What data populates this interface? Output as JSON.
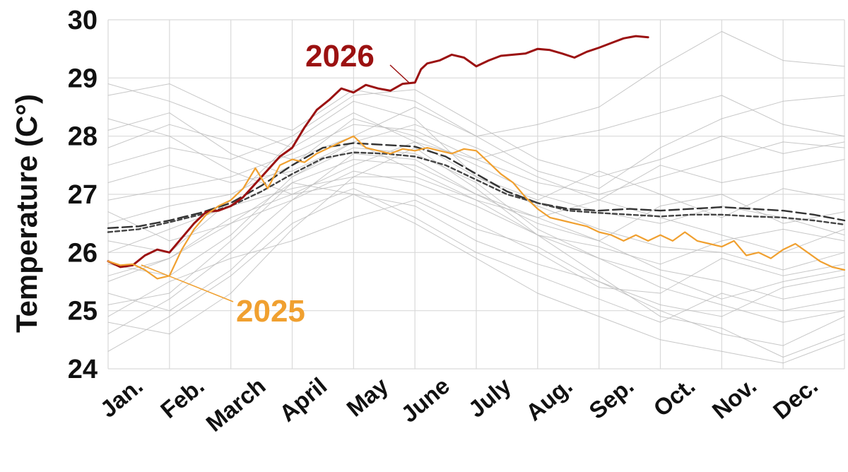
{
  "chart_data": {
    "type": "line",
    "title": "",
    "xlabel": "",
    "ylabel": "Temperature (C°)",
    "ylim": [
      24,
      30
    ],
    "xlim": [
      0,
      12
    ],
    "yticks": [
      24,
      25,
      26,
      27,
      28,
      29,
      30
    ],
    "categories": [
      "Jan.",
      "Feb.",
      "March",
      "April",
      "May",
      "June",
      "July",
      "Aug.",
      "Sep.",
      "Oct.",
      "Nov.",
      "Dec."
    ],
    "grid": true,
    "colors": {
      "y2026": "#9b1111",
      "y2025": "#f0a030",
      "mean": "#333333",
      "background_years": "#bdbdbd",
      "grid": "#d9d9d9"
    },
    "annotations": [
      {
        "text": "2026",
        "series": "2026"
      },
      {
        "text": "2025",
        "series": "2025"
      }
    ],
    "series": [
      {
        "name": "2026",
        "color": "#9b1111",
        "x": [
          0,
          0.2,
          0.4,
          0.6,
          0.8,
          1.0,
          1.2,
          1.4,
          1.6,
          1.8,
          2.0,
          2.2,
          2.5,
          2.8,
          3.0,
          3.2,
          3.4,
          3.6,
          3.8,
          4.0,
          4.2,
          4.4,
          4.6,
          4.8,
          5.0,
          5.1,
          5.2,
          5.4,
          5.6,
          5.8,
          6.0,
          6.2,
          6.4,
          6.6,
          6.8,
          7.0,
          7.2,
          7.4,
          7.6,
          7.8,
          8.0,
          8.2,
          8.4,
          8.6,
          8.8
        ],
        "y": [
          25.85,
          25.75,
          25.78,
          25.95,
          26.05,
          26.0,
          26.25,
          26.5,
          26.7,
          26.72,
          26.8,
          26.95,
          27.3,
          27.65,
          27.8,
          28.15,
          28.45,
          28.62,
          28.82,
          28.75,
          28.88,
          28.82,
          28.78,
          28.9,
          28.92,
          29.15,
          29.25,
          29.3,
          29.4,
          29.35,
          29.2,
          29.3,
          29.38,
          29.4,
          29.42,
          29.5,
          29.48,
          29.42,
          29.35,
          29.45,
          29.52,
          29.6,
          29.68,
          29.72,
          29.7
        ]
      },
      {
        "name": "2025",
        "color": "#f0a030",
        "x": [
          0,
          0.2,
          0.4,
          0.6,
          0.8,
          1.0,
          1.2,
          1.4,
          1.6,
          1.8,
          2.0,
          2.2,
          2.4,
          2.6,
          2.8,
          3.0,
          3.2,
          3.4,
          3.6,
          3.8,
          4.0,
          4.2,
          4.4,
          4.6,
          4.8,
          5.0,
          5.2,
          5.4,
          5.6,
          5.8,
          6.0,
          6.2,
          6.4,
          6.6,
          6.8,
          7.0,
          7.2,
          7.4,
          7.6,
          7.8,
          8.0,
          8.2,
          8.4,
          8.6,
          8.8,
          9.0,
          9.2,
          9.4,
          9.6,
          9.8,
          10.0,
          10.2,
          10.4,
          10.6,
          10.8,
          11.0,
          11.2,
          11.4,
          11.6,
          11.8,
          12.0
        ],
        "y": [
          25.85,
          25.78,
          25.8,
          25.7,
          25.55,
          25.6,
          26.05,
          26.4,
          26.65,
          26.8,
          26.9,
          27.1,
          27.45,
          27.1,
          27.5,
          27.6,
          27.55,
          27.7,
          27.8,
          27.9,
          28.0,
          27.8,
          27.75,
          27.7,
          27.78,
          27.75,
          27.8,
          27.75,
          27.7,
          27.78,
          27.75,
          27.55,
          27.35,
          27.2,
          26.95,
          26.75,
          26.6,
          26.55,
          26.5,
          26.45,
          26.35,
          26.3,
          26.2,
          26.3,
          26.2,
          26.3,
          26.2,
          26.35,
          26.2,
          26.15,
          26.1,
          26.2,
          25.95,
          26.0,
          25.9,
          26.05,
          26.15,
          26.0,
          25.85,
          25.75,
          25.7
        ]
      },
      {
        "name": "",
        "color": "#333333",
        "dash": "long",
        "x": [
          0,
          0.5,
          1.0,
          1.5,
          2.0,
          2.5,
          3.0,
          3.5,
          4.0,
          4.5,
          5.0,
          5.5,
          6.0,
          6.5,
          7.0,
          7.5,
          8.0,
          8.5,
          9.0,
          9.5,
          10.0,
          10.5,
          11.0,
          11.5,
          12.0
        ],
        "y": [
          26.42,
          26.45,
          26.55,
          26.68,
          26.85,
          27.15,
          27.5,
          27.8,
          27.88,
          27.85,
          27.82,
          27.65,
          27.35,
          27.05,
          26.85,
          26.75,
          26.72,
          26.75,
          26.72,
          26.75,
          26.78,
          26.75,
          26.72,
          26.65,
          26.55
        ]
      },
      {
        "name": "",
        "color": "#444444",
        "dash": "short",
        "x": [
          0,
          0.5,
          1.0,
          1.5,
          2.0,
          2.5,
          3.0,
          3.5,
          4.0,
          4.5,
          5.0,
          5.5,
          6.0,
          6.5,
          7.0,
          7.5,
          8.0,
          8.5,
          9.0,
          9.5,
          10.0,
          10.5,
          11.0,
          11.5,
          12.0
        ],
        "y": [
          26.35,
          26.4,
          26.52,
          26.65,
          26.8,
          27.05,
          27.35,
          27.62,
          27.72,
          27.7,
          27.65,
          27.5,
          27.25,
          27.0,
          26.85,
          26.72,
          26.68,
          26.65,
          26.62,
          26.65,
          26.65,
          26.62,
          26.6,
          26.55,
          26.48
        ]
      },
      {
        "name": "",
        "color": "#bdbdbd",
        "x": [
          0,
          1,
          2,
          3,
          4,
          5,
          6,
          7,
          8,
          9,
          10,
          11,
          12
        ],
        "y": [
          24.3,
          24.9,
          25.6,
          26.5,
          27.0,
          26.8,
          26.2,
          25.8,
          25.5,
          25.0,
          24.6,
          24.4,
          24.9
        ]
      },
      {
        "name": "",
        "color": "#bdbdbd",
        "x": [
          0,
          1,
          2,
          3,
          4,
          5,
          6,
          7,
          8,
          9,
          10,
          11,
          12
        ],
        "y": [
          28.7,
          28.9,
          28.4,
          28.1,
          28.8,
          28.6,
          28.0,
          28.2,
          28.5,
          29.2,
          29.8,
          29.3,
          29.2
        ]
      },
      {
        "name": "",
        "color": "#bdbdbd",
        "x": [
          0,
          1,
          2,
          3,
          4,
          5,
          6,
          7,
          8,
          9,
          10,
          11,
          12
        ],
        "y": [
          25.1,
          25.3,
          26.2,
          27.2,
          27.6,
          27.5,
          27.0,
          26.6,
          26.2,
          25.7,
          25.5,
          25.2,
          25.4
        ]
      },
      {
        "name": "",
        "color": "#bdbdbd",
        "x": [
          0,
          1,
          2,
          3,
          4,
          5,
          6,
          7,
          8,
          9,
          10,
          11,
          12
        ],
        "y": [
          26.9,
          27.1,
          27.3,
          27.7,
          28.2,
          28.1,
          27.6,
          27.2,
          27.0,
          27.3,
          27.6,
          27.9,
          27.8
        ]
      },
      {
        "name": "",
        "color": "#bdbdbd",
        "x": [
          0,
          1,
          2,
          3,
          4,
          5,
          6,
          7,
          8,
          9,
          10,
          11,
          12
        ],
        "y": [
          24.8,
          24.6,
          25.3,
          26.4,
          27.3,
          27.8,
          27.1,
          26.3,
          25.6,
          24.9,
          24.7,
          24.2,
          24.6
        ]
      },
      {
        "name": "",
        "color": "#bdbdbd",
        "x": [
          0,
          1,
          2,
          3,
          4,
          5,
          6,
          7,
          8,
          9,
          10,
          11,
          12
        ],
        "y": [
          27.8,
          28.2,
          27.9,
          27.6,
          28.0,
          28.5,
          28.0,
          27.4,
          27.1,
          27.8,
          28.3,
          28.6,
          28.7
        ]
      },
      {
        "name": "",
        "color": "#bdbdbd",
        "x": [
          0,
          1,
          2,
          3,
          4,
          5,
          6,
          7,
          8,
          9,
          10,
          11,
          12
        ],
        "y": [
          25.5,
          25.9,
          26.6,
          27.0,
          27.2,
          27.0,
          26.5,
          26.0,
          25.4,
          25.3,
          25.9,
          25.6,
          25.8
        ]
      },
      {
        "name": "",
        "color": "#bdbdbd",
        "x": [
          0,
          1,
          2,
          3,
          4,
          5,
          6,
          7,
          8,
          9,
          10,
          11,
          12
        ],
        "y": [
          26.2,
          26.0,
          26.9,
          27.9,
          28.6,
          28.3,
          27.3,
          26.8,
          26.4,
          26.1,
          26.0,
          25.7,
          26.0
        ]
      },
      {
        "name": "",
        "color": "#bdbdbd",
        "x": [
          0,
          1,
          2,
          3,
          4,
          5,
          6,
          7,
          8,
          9,
          10,
          11,
          12
        ],
        "y": [
          28.3,
          28.0,
          27.4,
          27.0,
          27.5,
          27.9,
          27.6,
          27.9,
          28.1,
          28.4,
          28.7,
          28.2,
          28.0
        ]
      },
      {
        "name": "",
        "color": "#bdbdbd",
        "x": [
          0,
          1,
          2,
          3,
          4,
          5,
          6,
          7,
          8,
          9,
          10,
          11,
          12
        ],
        "y": [
          24.6,
          25.2,
          26.0,
          26.9,
          27.4,
          27.2,
          26.8,
          26.3,
          25.9,
          25.4,
          25.1,
          24.8,
          25.0
        ]
      },
      {
        "name": "",
        "color": "#bdbdbd",
        "x": [
          0,
          1,
          2,
          3,
          4,
          5,
          6,
          7,
          8,
          9,
          10,
          11,
          12
        ],
        "y": [
          27.2,
          27.5,
          27.2,
          27.4,
          27.9,
          27.4,
          26.9,
          26.6,
          26.9,
          27.5,
          27.2,
          27.4,
          27.6
        ]
      },
      {
        "name": "",
        "color": "#bdbdbd",
        "x": [
          0,
          1,
          2,
          3,
          4,
          5,
          6,
          7,
          8,
          9,
          10,
          11,
          12
        ],
        "y": [
          25.8,
          25.6,
          26.3,
          27.3,
          27.8,
          27.7,
          27.2,
          26.4,
          25.9,
          25.6,
          25.2,
          25.5,
          25.7
        ]
      },
      {
        "name": "",
        "color": "#bdbdbd",
        "x": [
          0,
          1,
          2,
          3,
          4,
          5,
          6,
          7,
          8,
          9,
          10,
          11,
          12
        ],
        "y": [
          26.5,
          26.8,
          27.0,
          27.5,
          28.3,
          28.0,
          27.5,
          27.0,
          26.7,
          26.5,
          26.8,
          26.6,
          26.3
        ]
      },
      {
        "name": "",
        "color": "#bdbdbd",
        "x": [
          0,
          1,
          2,
          3,
          4,
          5,
          6,
          7,
          8,
          9,
          10,
          11,
          12
        ],
        "y": [
          28.9,
          28.6,
          28.2,
          27.8,
          28.4,
          27.9,
          27.3,
          26.9,
          27.4,
          27.0,
          26.6,
          27.1,
          26.9
        ]
      },
      {
        "name": "",
        "color": "#bdbdbd",
        "x": [
          0,
          1,
          2,
          3,
          4,
          5,
          6,
          7,
          8,
          9,
          10,
          11,
          12
        ],
        "y": [
          25.3,
          25.0,
          25.7,
          26.7,
          27.1,
          26.6,
          26.0,
          25.6,
          25.2,
          24.8,
          25.3,
          25.0,
          25.2
        ]
      },
      {
        "name": "",
        "color": "#bdbdbd",
        "x": [
          0,
          1,
          2,
          3,
          4,
          5,
          6,
          7,
          8,
          9,
          10,
          11,
          12
        ],
        "y": [
          27.5,
          27.8,
          27.6,
          28.0,
          28.7,
          28.8,
          28.2,
          27.6,
          27.3,
          27.6,
          28.0,
          27.7,
          27.9
        ]
      },
      {
        "name": "",
        "color": "#bdbdbd",
        "x": [
          0,
          1,
          2,
          3,
          4,
          5,
          6,
          7,
          8,
          9,
          10,
          11,
          12
        ],
        "y": [
          26.0,
          26.4,
          26.8,
          27.1,
          27.3,
          27.3,
          26.9,
          26.3,
          26.1,
          25.8,
          26.2,
          26.4,
          26.2
        ]
      },
      {
        "name": "",
        "color": "#bdbdbd",
        "x": [
          0,
          1,
          2,
          3,
          4,
          5,
          6,
          7,
          8,
          9,
          10,
          11,
          12
        ],
        "y": [
          24.9,
          25.5,
          25.9,
          26.2,
          26.6,
          26.9,
          26.4,
          26.1,
          25.5,
          25.1,
          24.9,
          25.4,
          25.6
        ]
      },
      {
        "name": "",
        "color": "#bdbdbd",
        "x": [
          0,
          1,
          2,
          3,
          4,
          5,
          6,
          7,
          8,
          9,
          10,
          11,
          12
        ],
        "y": [
          26.7,
          26.2,
          26.5,
          26.9,
          27.7,
          27.6,
          27.0,
          26.5,
          26.2,
          26.8,
          27.0,
          26.5,
          26.7
        ]
      },
      {
        "name": "",
        "color": "#bdbdbd",
        "x": [
          0,
          1,
          2,
          3,
          4,
          5,
          6,
          7,
          8,
          9,
          10,
          11,
          12
        ],
        "y": [
          28.1,
          28.4,
          27.7,
          27.3,
          27.9,
          28.2,
          27.8,
          27.3,
          26.9,
          26.6,
          26.3,
          26.0,
          26.4
        ]
      },
      {
        "name": "",
        "color": "#bdbdbd",
        "x": [
          0,
          1,
          2,
          3,
          4,
          5,
          6,
          7,
          8,
          9,
          10,
          11,
          12
        ],
        "y": [
          25.6,
          25.9,
          26.5,
          27.2,
          27.0,
          26.5,
          25.9,
          25.3,
          24.9,
          24.5,
          24.3,
          24.1,
          24.5
        ]
      }
    ]
  }
}
